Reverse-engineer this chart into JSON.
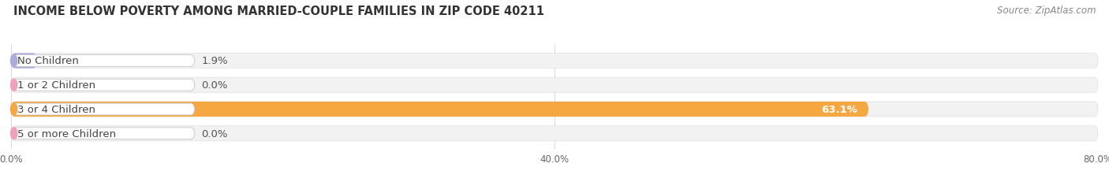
{
  "title": "INCOME BELOW POVERTY AMONG MARRIED-COUPLE FAMILIES IN ZIP CODE 40211",
  "source": "Source: ZipAtlas.com",
  "categories": [
    "No Children",
    "1 or 2 Children",
    "3 or 4 Children",
    "5 or more Children"
  ],
  "values": [
    1.9,
    0.0,
    63.1,
    0.0
  ],
  "bar_colors": [
    "#aaaadd",
    "#f0a0b8",
    "#f5a742",
    "#f0a0b8"
  ],
  "xlim_max": 80,
  "xticks": [
    0.0,
    40.0,
    80.0
  ],
  "xtick_labels": [
    "0.0%",
    "40.0%",
    "80.0%"
  ],
  "bar_height": 0.62,
  "fig_width": 14.06,
  "fig_height": 2.32,
  "title_fontsize": 10.5,
  "label_fontsize": 9.5,
  "value_fontsize": 9.5,
  "source_fontsize": 8.5,
  "bg_color": "#f2f2f2",
  "pill_color": "#ffffff",
  "grid_color": "#d8d8d8"
}
